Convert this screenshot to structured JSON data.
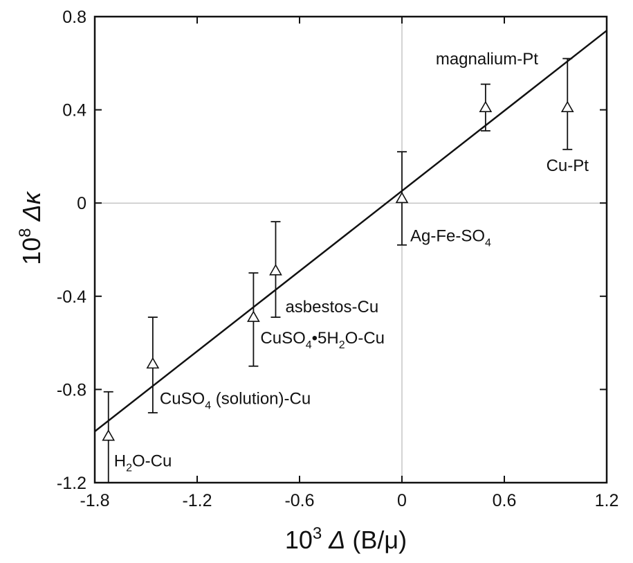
{
  "chart_data": {
    "type": "scatter",
    "xlabel": {
      "prefix": "10",
      "exp": "3",
      "symbol": "Δ",
      "unit": "(B/μ)"
    },
    "ylabel": {
      "prefix": "10",
      "exp": "8",
      "symbol": "Δκ"
    },
    "xlim": [
      -1.8,
      1.2
    ],
    "ylim": [
      -1.2,
      0.8
    ],
    "x_ticks": [
      -1.8,
      -1.2,
      -0.6,
      0,
      0.6,
      1.2
    ],
    "x_tick_labels": [
      "-1.8",
      "-1.2",
      "-0.6",
      "0",
      "0.6",
      "1.2"
    ],
    "y_ticks": [
      -1.2,
      -0.8,
      -0.4,
      0,
      0.4,
      0.8
    ],
    "y_tick_labels": [
      "-1.2",
      "-0.8",
      "-0.4",
      "0",
      "0.4",
      "0.8"
    ],
    "zero_lines": true,
    "marker": "open-triangle",
    "points": [
      {
        "x": -1.72,
        "y": -1.0,
        "err_low": -1.2,
        "err_high": -0.81,
        "label": [
          {
            "t": "H"
          },
          {
            "t": "2",
            "sub": true
          },
          {
            "t": "O-Cu"
          }
        ]
      },
      {
        "x": -1.46,
        "y": -0.69,
        "err_low": -0.9,
        "err_high": -0.49,
        "label": [
          {
            "t": "CuSO"
          },
          {
            "t": "4",
            "sub": true
          },
          {
            "t": " (solution)-Cu"
          }
        ]
      },
      {
        "x": -0.87,
        "y": -0.49,
        "err_low": -0.7,
        "err_high": -0.3,
        "label": [
          {
            "t": "CuSO"
          },
          {
            "t": "4",
            "sub": true
          },
          {
            "t": "•5H"
          },
          {
            "t": "2",
            "sub": true
          },
          {
            "t": "O-Cu"
          }
        ]
      },
      {
        "x": -0.74,
        "y": -0.29,
        "err_low": -0.49,
        "err_high": -0.08,
        "label": [
          {
            "t": "asbestos-Cu"
          }
        ]
      },
      {
        "x": 0.0,
        "y": 0.02,
        "err_low": -0.18,
        "err_high": 0.22,
        "label": [
          {
            "t": "Ag-Fe-SO"
          },
          {
            "t": "4",
            "sub": true
          }
        ]
      },
      {
        "x": 0.49,
        "y": 0.41,
        "err_low": 0.31,
        "err_high": 0.51,
        "label": [
          {
            "t": "magnalium-Pt"
          }
        ]
      },
      {
        "x": 0.97,
        "y": 0.41,
        "err_low": 0.23,
        "err_high": 0.62,
        "label": [
          {
            "t": "Cu-Pt"
          }
        ]
      }
    ],
    "fit_line": {
      "x": [
        -1.8,
        1.2
      ],
      "y": [
        -0.98,
        0.74
      ]
    }
  }
}
